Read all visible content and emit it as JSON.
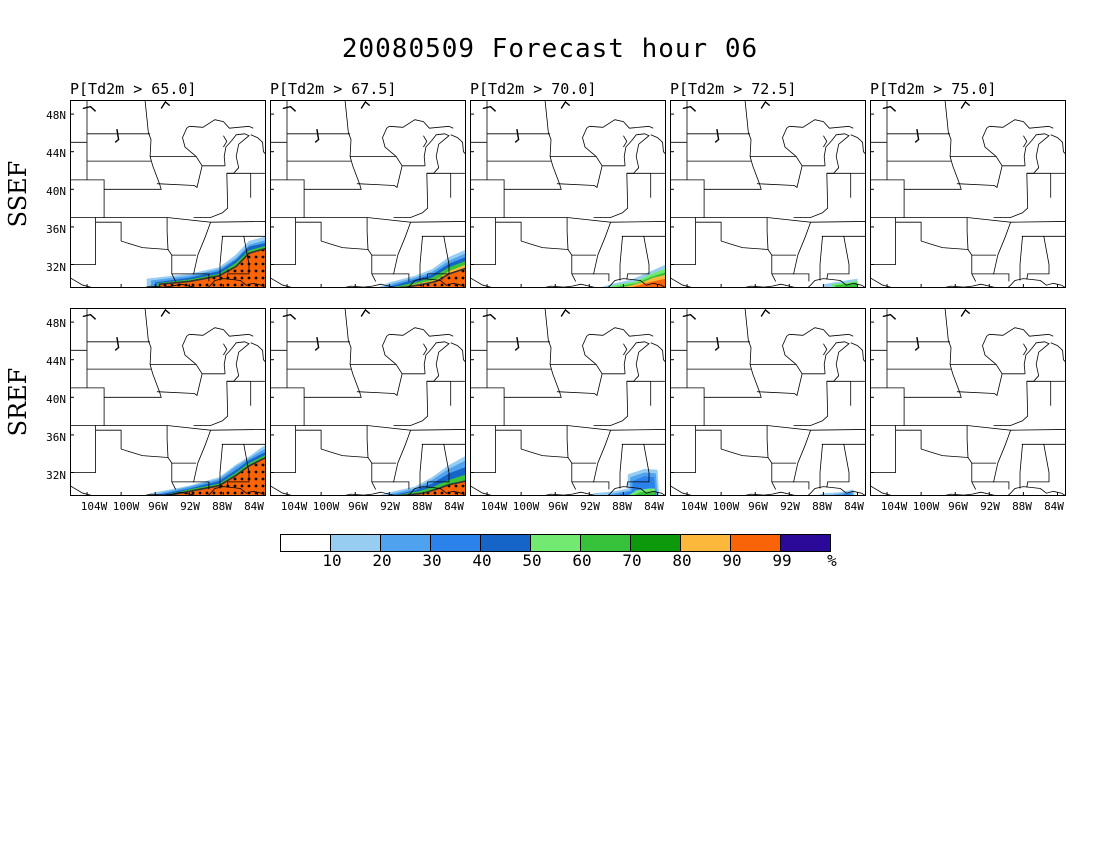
{
  "title": "20080509 Forecast hour 06",
  "panel_titles": [
    "P[Td2m > 65.0]",
    "P[Td2m > 67.5]",
    "P[Td2m > 70.0]",
    "P[Td2m > 72.5]",
    "P[Td2m > 75.0]"
  ],
  "row_labels": [
    "SSEF",
    "SREF"
  ],
  "lat_labels": [
    "48N",
    "44N",
    "40N",
    "36N",
    "32N"
  ],
  "lon_labels": [
    "104W",
    "100W",
    "96W",
    "92W",
    "88W",
    "84W"
  ],
  "colorbar": {
    "colors": [
      "#ffffff",
      "#98cdf2",
      "#4ea2ee",
      "#2b82ea",
      "#1565c8",
      "#72ea72",
      "#36c23a",
      "#0c9a0c",
      "#fbb83a",
      "#fa6408",
      "#2b0a9a"
    ],
    "labels": [
      "10",
      "20",
      "30",
      "40",
      "50",
      "60",
      "70",
      "80",
      "90",
      "99",
      "%"
    ]
  },
  "map_data": {
    "lat_range": [
      29.5,
      49.5
    ],
    "lon_range": [
      -106,
      -83
    ],
    "lat_ticks": [
      48,
      44,
      40,
      36,
      32
    ],
    "lon_ticks": [
      -104,
      -100,
      -96,
      -92,
      -88,
      -84
    ]
  }
}
